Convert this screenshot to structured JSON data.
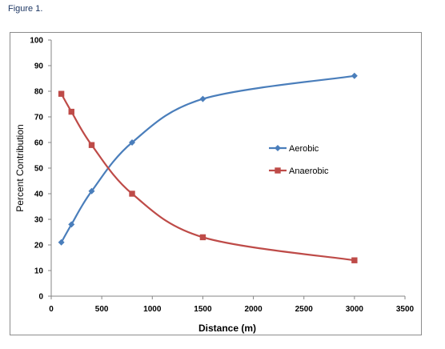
{
  "figure": {
    "caption": "Figure 1."
  },
  "chart_data": {
    "type": "scatter",
    "title": "",
    "xlabel": "Distance (m)",
    "ylabel": "Percent Contribution",
    "xlim": [
      0,
      3500
    ],
    "ylim": [
      0,
      100
    ],
    "xticks": [
      0,
      500,
      1000,
      1500,
      2000,
      2500,
      3000,
      3500
    ],
    "yticks": [
      0,
      10,
      20,
      30,
      40,
      50,
      60,
      70,
      80,
      90,
      100
    ],
    "grid": false,
    "legend_position": "right",
    "lines": "smooth",
    "series": [
      {
        "name": "Aerobic",
        "color": "#4a7ebb",
        "marker": "diamond",
        "x": [
          100,
          200,
          400,
          800,
          1500,
          3000
        ],
        "y": [
          21,
          28,
          41,
          60,
          77,
          86
        ]
      },
      {
        "name": "Anaerobic",
        "color": "#be4b48",
        "marker": "square",
        "x": [
          100,
          200,
          400,
          800,
          1500,
          3000
        ],
        "y": [
          79,
          72,
          59,
          40,
          23,
          14
        ]
      }
    ]
  }
}
